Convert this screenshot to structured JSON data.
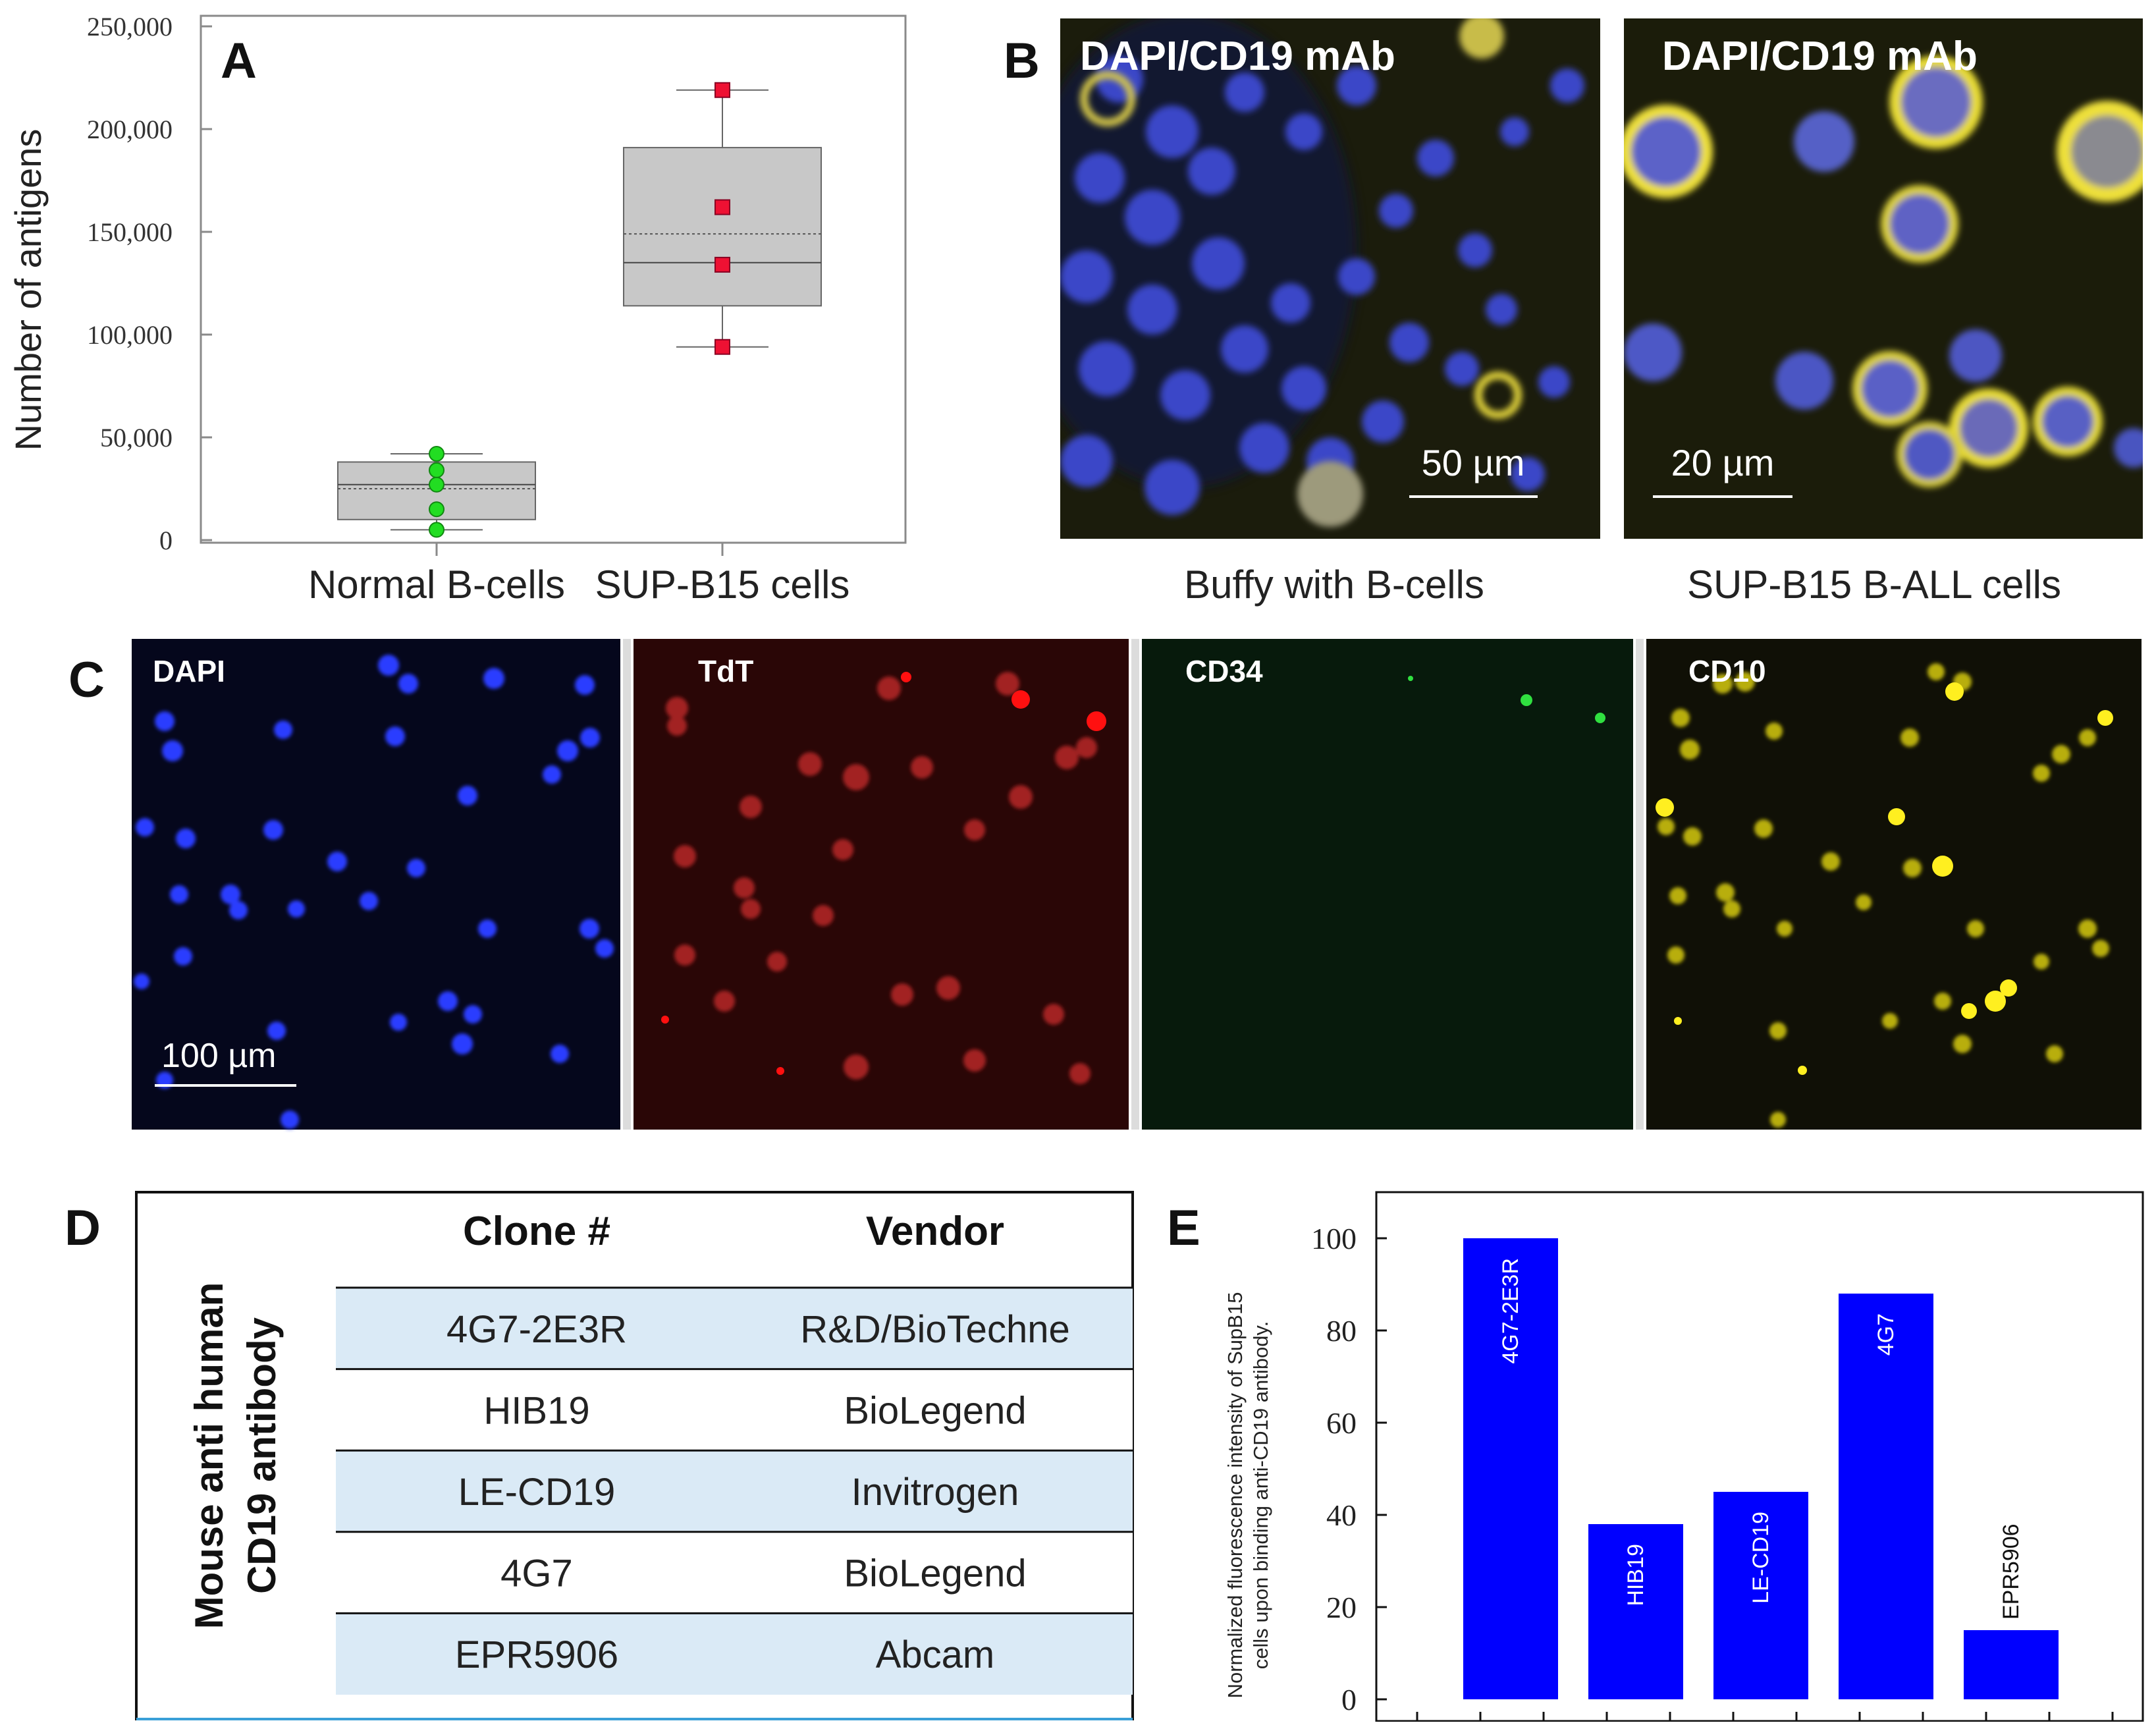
{
  "panels": {
    "A": {
      "letter": "A",
      "ylabel": "Number of antigens",
      "yticks": [
        "0",
        "50,000",
        "100,000",
        "150,000",
        "200,000",
        "250,000"
      ],
      "xlabels": [
        "Normal B-cells",
        "SUP-B15 cells"
      ]
    },
    "B": {
      "letter": "B",
      "images": [
        {
          "title": "DAPI/CD19 mAb",
          "scale": "50 µm",
          "caption": "Buffy with B-cells"
        },
        {
          "title": "DAPI/CD19 mAb",
          "scale": "20 µm",
          "caption": "SUP-B15 B-ALL cells"
        }
      ]
    },
    "C": {
      "letter": "C",
      "channels": [
        {
          "label": "DAPI",
          "color": "#2b3cff"
        },
        {
          "label": "TdT",
          "color": "#d81818"
        },
        {
          "label": "CD34",
          "color": "#1fae1f"
        },
        {
          "label": "CD10",
          "color": "#e6dc20"
        }
      ],
      "scale": "100 µm"
    },
    "D": {
      "letter": "D",
      "side_label_line1": "Mouse anti human",
      "side_label_line2": "CD19 antibody",
      "headers": [
        "Clone #",
        "Vendor"
      ],
      "rows": [
        [
          "4G7-2E3R",
          "R&D/BioTechne"
        ],
        [
          "HIB19",
          "BioLegend"
        ],
        [
          "LE-CD19",
          "Invitrogen"
        ],
        [
          "4G7",
          "BioLegend"
        ],
        [
          "EPR5906",
          "Abcam"
        ]
      ],
      "row_shade": "#daeaf6"
    },
    "E": {
      "letter": "E",
      "ylabel_line1": "Normalized fluorescence intensity of SupB15",
      "ylabel_line2": "cells upon binding anti-CD19 antibody.",
      "bar_color": "#0000ff"
    }
  },
  "chart_data": [
    {
      "type": "box",
      "panel": "A",
      "title": "",
      "xlabel": "",
      "ylabel": "Number of antigens",
      "ylim": [
        0,
        250000
      ],
      "yticks": [
        0,
        50000,
        100000,
        150000,
        200000,
        250000
      ],
      "categories": [
        "Normal B-cells",
        "SUP-B15 cells"
      ],
      "series": [
        {
          "name": "Normal B-cells",
          "marker_color": "#22dd22",
          "points": [
            5000,
            15000,
            27000,
            34000,
            42000
          ],
          "box": {
            "whisker_low": 5000,
            "q1": 10000,
            "median": 27000,
            "mean": 25000,
            "q3": 38000,
            "whisker_high": 42000
          }
        },
        {
          "name": "SUP-B15 cells",
          "marker_color": "#ee1133",
          "points": [
            94000,
            134000,
            162000,
            219000
          ],
          "box": {
            "whisker_low": 94000,
            "q1": 114000,
            "median": 135000,
            "mean": 149000,
            "q3": 191000,
            "whisker_high": 219000
          }
        }
      ]
    },
    {
      "type": "bar",
      "panel": "E",
      "title": "",
      "xlabel": "",
      "ylabel": "Normalized fluorescence intensity of SupB15 cells upon binding anti-CD19 antibody.",
      "ylim": [
        0,
        110
      ],
      "yticks": [
        0,
        20,
        40,
        60,
        80,
        100
      ],
      "categories": [
        "4G7-2E3R",
        "HIB19",
        "LE-CD19",
        "4G7",
        "EPR5906"
      ],
      "values": [
        100,
        38,
        45,
        88,
        15
      ]
    }
  ]
}
